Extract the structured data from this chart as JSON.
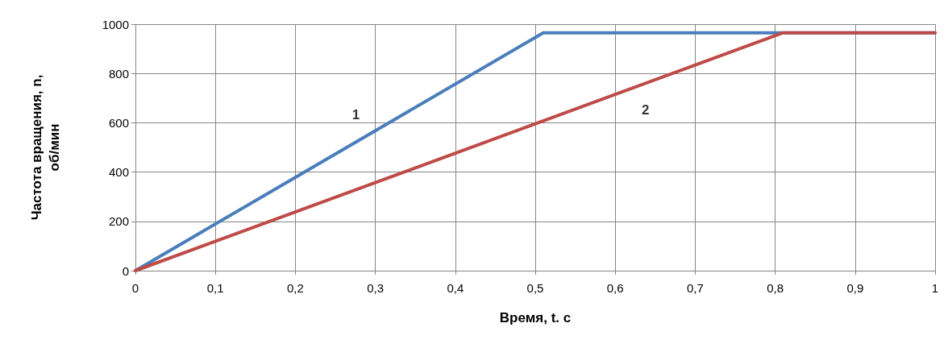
{
  "chart_data": {
    "type": "line",
    "xlabel": "Время, t. с",
    "ylabel": "Частота вращения, n,\nоб/мин",
    "series": [
      {
        "name": "1",
        "color": "#4a7ebb",
        "x": [
          0,
          0.51,
          1
        ],
        "values": [
          0,
          965,
          965
        ]
      },
      {
        "name": "2",
        "color": "#be4b48",
        "x": [
          0,
          0.81,
          1
        ],
        "values": [
          0,
          965,
          965
        ]
      }
    ],
    "xlim": [
      0,
      1
    ],
    "ylim": [
      0,
      1000
    ],
    "xticks": [
      0,
      {
        "value": 0.1,
        "label": "0,1"
      },
      {
        "value": 0.2,
        "label": "0,2"
      },
      {
        "value": 0.3,
        "label": "0,3"
      },
      {
        "value": 0.4,
        "label": "0,4"
      },
      {
        "value": 0.5,
        "label": "0,5"
      },
      {
        "value": 0.6,
        "label": "0,6"
      },
      {
        "value": 0.7,
        "label": "0,7"
      },
      {
        "value": 0.8,
        "label": "0,8"
      },
      {
        "value": 0.9,
        "label": "0,9"
      },
      1
    ],
    "yticks": [
      0,
      200,
      400,
      600,
      800,
      1000
    ],
    "grid": true,
    "marker": "none",
    "line_style": "solid"
  }
}
